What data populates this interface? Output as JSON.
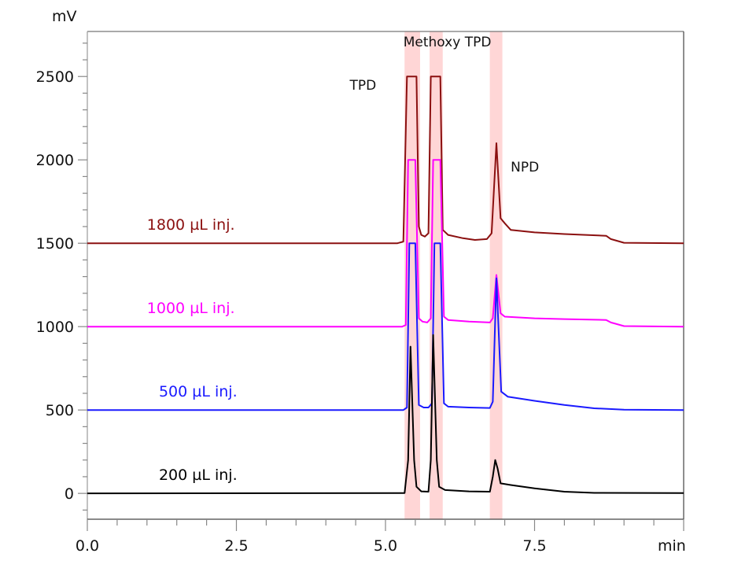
{
  "chart_data": {
    "type": "line",
    "title": "",
    "xlabel": "min",
    "ylabel": "mV",
    "xlim": [
      0,
      10
    ],
    "ylim": [
      -155,
      2770
    ],
    "grid": false,
    "x_ticks": [
      {
        "value": 0,
        "label": "0.0"
      },
      {
        "value": 2.5,
        "label": "2.5"
      },
      {
        "value": 5.0,
        "label": "5.0"
      },
      {
        "value": 7.5,
        "label": "7.5"
      }
    ],
    "x_minor_step": 0.5,
    "y_ticks": [
      {
        "value": 0,
        "label": "0"
      },
      {
        "value": 500,
        "label": "500"
      },
      {
        "value": 1000,
        "label": "1000"
      },
      {
        "value": 1500,
        "label": "1500"
      },
      {
        "value": 2000,
        "label": "2000"
      },
      {
        "value": 2500,
        "label": "2500"
      }
    ],
    "y_minor_step": 100,
    "bands": [
      {
        "name": "TPD",
        "x0": 5.32,
        "x1": 5.58,
        "color": "#ffd6d6"
      },
      {
        "name": "Methoxy TPD",
        "x0": 5.74,
        "x1": 5.96,
        "color": "#ffd6d6"
      },
      {
        "name": "NPD",
        "x0": 6.75,
        "x1": 6.96,
        "color": "#ffd6d6"
      }
    ],
    "annotations": [
      {
        "text": "TPD",
        "x": 4.4,
        "y": 2420
      },
      {
        "text": "Methoxy TPD",
        "x": 5.3,
        "y": 2680
      },
      {
        "text": "NPD",
        "x": 7.1,
        "y": 1930
      }
    ],
    "series": [
      {
        "name": "1800 µL inj.",
        "label": "1800 µL inj.",
        "color": "#8b1010",
        "offset": 1500,
        "label_pos": {
          "x": 1.0,
          "y": 1580
        },
        "points": [
          [
            0,
            1500
          ],
          [
            5.2,
            1500
          ],
          [
            5.3,
            1510
          ],
          [
            5.36,
            2500
          ],
          [
            5.52,
            2500
          ],
          [
            5.56,
            1600
          ],
          [
            5.6,
            1550
          ],
          [
            5.66,
            1540
          ],
          [
            5.72,
            1560
          ],
          [
            5.76,
            2500
          ],
          [
            5.92,
            2500
          ],
          [
            5.96,
            1580
          ],
          [
            6.05,
            1550
          ],
          [
            6.3,
            1530
          ],
          [
            6.5,
            1520
          ],
          [
            6.7,
            1525
          ],
          [
            6.78,
            1560
          ],
          [
            6.86,
            2100
          ],
          [
            6.93,
            1650
          ],
          [
            7.0,
            1620
          ],
          [
            7.1,
            1580
          ],
          [
            7.5,
            1565
          ],
          [
            8.0,
            1555
          ],
          [
            8.7,
            1545
          ],
          [
            8.78,
            1525
          ],
          [
            9.0,
            1503
          ],
          [
            10,
            1500
          ]
        ]
      },
      {
        "name": "1000 µL inj.",
        "label": "1000 µL inj.",
        "color": "#ff00ff",
        "offset": 1000,
        "label_pos": {
          "x": 1.0,
          "y": 1080
        },
        "points": [
          [
            0,
            1000
          ],
          [
            5.28,
            1000
          ],
          [
            5.34,
            1010
          ],
          [
            5.38,
            2000
          ],
          [
            5.5,
            2000
          ],
          [
            5.56,
            1050
          ],
          [
            5.62,
            1030
          ],
          [
            5.7,
            1025
          ],
          [
            5.76,
            1050
          ],
          [
            5.8,
            2000
          ],
          [
            5.92,
            2000
          ],
          [
            5.98,
            1060
          ],
          [
            6.05,
            1040
          ],
          [
            6.4,
            1030
          ],
          [
            6.75,
            1025
          ],
          [
            6.8,
            1050
          ],
          [
            6.86,
            1310
          ],
          [
            6.93,
            1080
          ],
          [
            7.0,
            1060
          ],
          [
            7.5,
            1050
          ],
          [
            8.0,
            1045
          ],
          [
            8.7,
            1040
          ],
          [
            8.78,
            1025
          ],
          [
            9.0,
            1003
          ],
          [
            10,
            1000
          ]
        ]
      },
      {
        "name": "500 µL inj.",
        "label": "500 µL inj.",
        "color": "#1a1aff",
        "offset": 500,
        "label_pos": {
          "x": 1.2,
          "y": 580
        },
        "points": [
          [
            0,
            500
          ],
          [
            5.3,
            500
          ],
          [
            5.36,
            515
          ],
          [
            5.4,
            1500
          ],
          [
            5.5,
            1500
          ],
          [
            5.56,
            530
          ],
          [
            5.64,
            515
          ],
          [
            5.72,
            515
          ],
          [
            5.78,
            540
          ],
          [
            5.82,
            1500
          ],
          [
            5.92,
            1500
          ],
          [
            5.98,
            540
          ],
          [
            6.05,
            520
          ],
          [
            6.4,
            515
          ],
          [
            6.75,
            512
          ],
          [
            6.8,
            550
          ],
          [
            6.86,
            1290
          ],
          [
            6.94,
            610
          ],
          [
            7.05,
            580
          ],
          [
            7.5,
            555
          ],
          [
            8.0,
            530
          ],
          [
            8.5,
            510
          ],
          [
            9.0,
            502
          ],
          [
            10,
            500
          ]
        ]
      },
      {
        "name": "200 µL inj.",
        "label": "200 µL inj.",
        "color": "#000000",
        "offset": 0,
        "label_pos": {
          "x": 1.2,
          "y": 80
        },
        "points": [
          [
            0,
            0
          ],
          [
            5.32,
            2
          ],
          [
            5.38,
            200
          ],
          [
            5.42,
            880
          ],
          [
            5.48,
            200
          ],
          [
            5.52,
            40
          ],
          [
            5.6,
            12
          ],
          [
            5.72,
            10
          ],
          [
            5.76,
            200
          ],
          [
            5.8,
            950
          ],
          [
            5.86,
            200
          ],
          [
            5.9,
            40
          ],
          [
            6.0,
            20
          ],
          [
            6.4,
            12
          ],
          [
            6.75,
            10
          ],
          [
            6.8,
            100
          ],
          [
            6.84,
            200
          ],
          [
            6.88,
            150
          ],
          [
            6.93,
            60
          ],
          [
            7.1,
            50
          ],
          [
            7.5,
            30
          ],
          [
            8.0,
            10
          ],
          [
            8.5,
            3
          ],
          [
            10,
            2
          ]
        ]
      }
    ]
  }
}
